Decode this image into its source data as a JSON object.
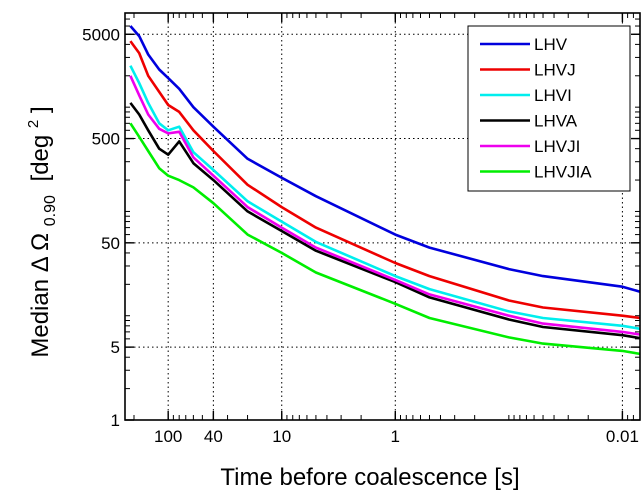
{
  "chart_data": {
    "type": "line",
    "xlabel": "Time before coalescence [s]",
    "ylabel_main": "Median Δ Ω",
    "ylabel_sub": "0.90",
    "ylabel_unit": "[deg",
    "ylabel_sup": "2",
    "ylabel_close": "]",
    "x_scale": "log",
    "x_reversed": true,
    "y_scale": "log",
    "xlim": [
      240,
      0.007
    ],
    "ylim": [
      1,
      8000
    ],
    "grid": true,
    "legend_position": "top-right",
    "x_ticks": [
      {
        "value": 100,
        "label": "100"
      },
      {
        "value": 40,
        "label": "40"
      },
      {
        "value": 10,
        "label": "10"
      },
      {
        "value": 1,
        "label": "1"
      },
      {
        "value": 0.01,
        "label": "0.01"
      }
    ],
    "y_ticks": [
      {
        "value": 1,
        "label": "1"
      },
      {
        "value": 5,
        "label": "5"
      },
      {
        "value": 50,
        "label": "50"
      },
      {
        "value": 500,
        "label": "500"
      },
      {
        "value": 5000,
        "label": "5000"
      }
    ],
    "series": [
      {
        "name": "LHV",
        "color": "#0000dd",
        "x": [
          215,
          180,
          150,
          120,
          100,
          80,
          60,
          40,
          20,
          10,
          5,
          1,
          0.5,
          0.1,
          0.05,
          0.01,
          0.007
        ],
        "y": [
          6000,
          4800,
          3200,
          2300,
          1900,
          1500,
          1000,
          650,
          320,
          210,
          140,
          60,
          45,
          28,
          24,
          19,
          17
        ]
      },
      {
        "name": "LHVJ",
        "color": "#ee0000",
        "x": [
          215,
          180,
          150,
          120,
          100,
          80,
          60,
          40,
          20,
          10,
          5,
          1,
          0.5,
          0.1,
          0.05,
          0.01,
          0.007
        ],
        "y": [
          4300,
          3300,
          2000,
          1400,
          1050,
          900,
          600,
          380,
          180,
          110,
          70,
          32,
          24,
          14,
          12,
          10,
          9.5
        ]
      },
      {
        "name": "LHVI",
        "color": "#00eeee",
        "x": [
          215,
          180,
          150,
          120,
          100,
          80,
          60,
          40,
          20,
          10,
          5,
          1,
          0.5,
          0.1,
          0.05,
          0.01,
          0.007
        ],
        "y": [
          2500,
          1700,
          1100,
          700,
          600,
          650,
          370,
          250,
          125,
          80,
          51,
          24,
          18,
          11,
          9.5,
          8,
          7.5
        ]
      },
      {
        "name": "LHVA",
        "color": "#000000",
        "x": [
          215,
          180,
          150,
          120,
          100,
          80,
          60,
          40,
          20,
          10,
          5,
          1,
          0.5,
          0.1,
          0.05,
          0.01,
          0.007
        ],
        "y": [
          1100,
          850,
          600,
          400,
          350,
          470,
          290,
          200,
          100,
          65,
          42,
          21,
          15,
          9.2,
          7.8,
          6.5,
          6.1
        ]
      },
      {
        "name": "LHVJI",
        "color": "#ee00ee",
        "x": [
          215,
          180,
          150,
          120,
          100,
          80,
          60,
          40,
          20,
          10,
          5,
          1,
          0.5,
          0.1,
          0.05,
          0.01,
          0.007
        ],
        "y": [
          2000,
          1300,
          850,
          620,
          560,
          580,
          330,
          220,
          110,
          70,
          45,
          22,
          16,
          10,
          8.4,
          7,
          6.6
        ]
      },
      {
        "name": "LHVJIA",
        "color": "#00ee00",
        "x": [
          215,
          180,
          150,
          120,
          100,
          80,
          60,
          40,
          20,
          10,
          5,
          1,
          0.5,
          0.1,
          0.05,
          0.01,
          0.007
        ],
        "y": [
          700,
          520,
          380,
          260,
          220,
          200,
          170,
          120,
          60,
          40,
          26,
          13,
          9.5,
          6.2,
          5.4,
          4.6,
          4.3
        ]
      }
    ]
  }
}
